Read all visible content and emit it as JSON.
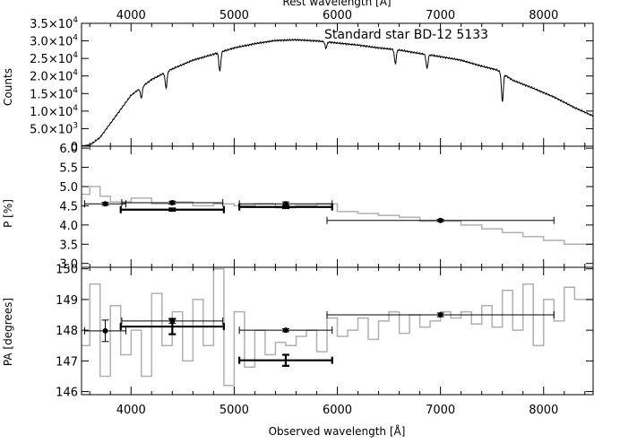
{
  "chart_data": {
    "type": "line",
    "x_axis": {
      "label": "Observed wavelength [Å]",
      "range": [
        3520,
        8480
      ],
      "ticks": [
        4000,
        5000,
        6000,
        7000,
        8000
      ],
      "tick_labels": [
        "4000",
        "5000",
        "6000",
        "7000",
        "8000"
      ]
    },
    "top_axis": {
      "label": "Rest wavelength [Å]",
      "ticks": [
        4000,
        5000,
        6000,
        7000,
        8000
      ],
      "tick_labels": [
        "4000",
        "5000",
        "6000",
        "7000",
        "8000"
      ]
    },
    "panels": [
      {
        "id": "counts",
        "ylabel": "Counts",
        "annotation": "Standard star BD-12 5133",
        "ylim": [
          0,
          35000
        ],
        "yticks": [
          0,
          5000,
          10000,
          15000,
          20000,
          25000,
          30000,
          35000
        ],
        "ytick_labels": [
          {
            "mant": "0",
            "exp": ""
          },
          {
            "mant": "5.0×10",
            "exp": "3"
          },
          {
            "mant": "1.0×10",
            "exp": "4"
          },
          {
            "mant": "1.5×10",
            "exp": "4"
          },
          {
            "mant": "2.0×10",
            "exp": "4"
          },
          {
            "mant": "2.5×10",
            "exp": "4"
          },
          {
            "mant": "3.0×10",
            "exp": "4"
          },
          {
            "mant": "3.5×10",
            "exp": "4"
          }
        ],
        "spectrum": {
          "x": [
            3520,
            3600,
            3700,
            3800,
            3900,
            4000,
            4200,
            4400,
            4600,
            4800,
            5000,
            5200,
            5400,
            5600,
            5800,
            6000,
            6200,
            6400,
            6600,
            6800,
            7000,
            7200,
            7400,
            7550,
            7700,
            7900,
            8100,
            8300,
            8480
          ],
          "y": [
            0,
            300,
            2500,
            6500,
            10500,
            14500,
            19000,
            22000,
            24500,
            26200,
            28000,
            29200,
            30100,
            30300,
            30000,
            29400,
            28800,
            28000,
            27400,
            26400,
            25500,
            24500,
            22800,
            21700,
            18800,
            16500,
            14000,
            11000,
            8600
          ]
        },
        "absorption_lines": [
          {
            "x": 4100,
            "depth": 3000
          },
          {
            "x": 4340,
            "depth": 4500
          },
          {
            "x": 4861,
            "depth": 5500
          },
          {
            "x": 5890,
            "depth": 1800
          },
          {
            "x": 6563,
            "depth": 4000
          },
          {
            "x": 6870,
            "depth": 4000
          },
          {
            "x": 7600,
            "depth": 8000
          }
        ]
      },
      {
        "id": "polarization",
        "ylabel": "P [%]",
        "ylim": [
          2.9,
          6.05
        ],
        "yticks": [
          3.0,
          3.5,
          4.0,
          4.5,
          5.0,
          5.5,
          6.0
        ],
        "ytick_labels": [
          "3.0",
          "3.5",
          "4.0",
          "4.5",
          "5.0",
          "5.5",
          "6.0"
        ],
        "binned_x": [
          3520,
          3600,
          3700,
          3800,
          4000,
          4200,
          4400,
          4600,
          4800,
          5000,
          5200,
          5400,
          5600,
          5800,
          6000,
          6200,
          6400,
          6600,
          6800,
          7000,
          7200,
          7400,
          7600,
          7800,
          8000,
          8200,
          8480
        ],
        "binned_y": [
          4.8,
          5.0,
          4.75,
          4.6,
          4.7,
          4.55,
          4.6,
          4.5,
          4.55,
          4.5,
          4.55,
          4.45,
          4.5,
          4.55,
          4.35,
          4.3,
          4.25,
          4.2,
          4.1,
          4.1,
          4.0,
          3.9,
          3.8,
          3.7,
          3.6,
          3.5,
          3.4
        ],
        "points": [
          {
            "x": 3750,
            "y": 4.55,
            "xerr": 200,
            "yerr": 0.04
          },
          {
            "x": 4400,
            "y": 4.58,
            "xerr": 490,
            "yerr": 0.04
          },
          {
            "x": 5500,
            "y": 4.55,
            "xerr": 450,
            "yerr": 0.05
          },
          {
            "x": 7000,
            "y": 4.12,
            "xerr": 1100,
            "yerr": 0.03
          }
        ],
        "bands": [
          {
            "x": 4400,
            "y": 4.4,
            "xerr": 500,
            "yerr": 0.03
          },
          {
            "x": 5500,
            "y": 4.47,
            "xerr": 450,
            "yerr": 0.03
          }
        ]
      },
      {
        "id": "position_angle",
        "ylabel": "PA [degrees]",
        "ylim": [
          145.9,
          150.05
        ],
        "yticks": [
          146,
          147,
          148,
          149,
          150
        ],
        "ytick_labels": [
          "146",
          "147",
          "148",
          "149",
          "150"
        ],
        "binned_x": [
          3520,
          3600,
          3700,
          3800,
          3900,
          4000,
          4100,
          4200,
          4300,
          4400,
          4500,
          4600,
          4700,
          4800,
          4900,
          5000,
          5100,
          5200,
          5300,
          5400,
          5500,
          5600,
          5700,
          5800,
          5900,
          6000,
          6100,
          6200,
          6300,
          6400,
          6500,
          6600,
          6700,
          6800,
          6900,
          7000,
          7100,
          7200,
          7300,
          7400,
          7500,
          7600,
          7700,
          7800,
          7900,
          8000,
          8100,
          8200,
          8300,
          8480
        ],
        "binned_y": [
          147.5,
          149.5,
          146.5,
          148.8,
          147.2,
          148.0,
          146.5,
          149.2,
          147.5,
          148.6,
          147.0,
          149.0,
          147.5,
          150.0,
          146.2,
          148.6,
          146.8,
          148.0,
          147.2,
          147.6,
          147.5,
          147.8,
          148.0,
          147.3,
          148.4,
          147.8,
          148.0,
          148.4,
          147.7,
          148.3,
          148.6,
          147.9,
          148.5,
          148.1,
          148.3,
          148.6,
          148.4,
          148.6,
          148.2,
          148.8,
          148.1,
          149.3,
          148.0,
          149.5,
          147.5,
          149.0,
          148.3,
          149.4,
          149.0,
          149.6
        ],
        "points": [
          {
            "x": 3750,
            "y": 147.98,
            "xerr": 200,
            "yerr": 0.35
          },
          {
            "x": 4400,
            "y": 148.3,
            "xerr": 490,
            "yerr": 0.08
          },
          {
            "x": 5500,
            "y": 148.0,
            "xerr": 450,
            "yerr": 0.05
          },
          {
            "x": 7000,
            "y": 148.5,
            "xerr": 1100,
            "yerr": 0.06
          }
        ],
        "bands": [
          {
            "x": 4400,
            "y": 148.12,
            "xerr": 500,
            "yerr": 0.25
          },
          {
            "x": 5500,
            "y": 147.02,
            "xerr": 450,
            "yerr": 0.18
          }
        ]
      }
    ]
  }
}
